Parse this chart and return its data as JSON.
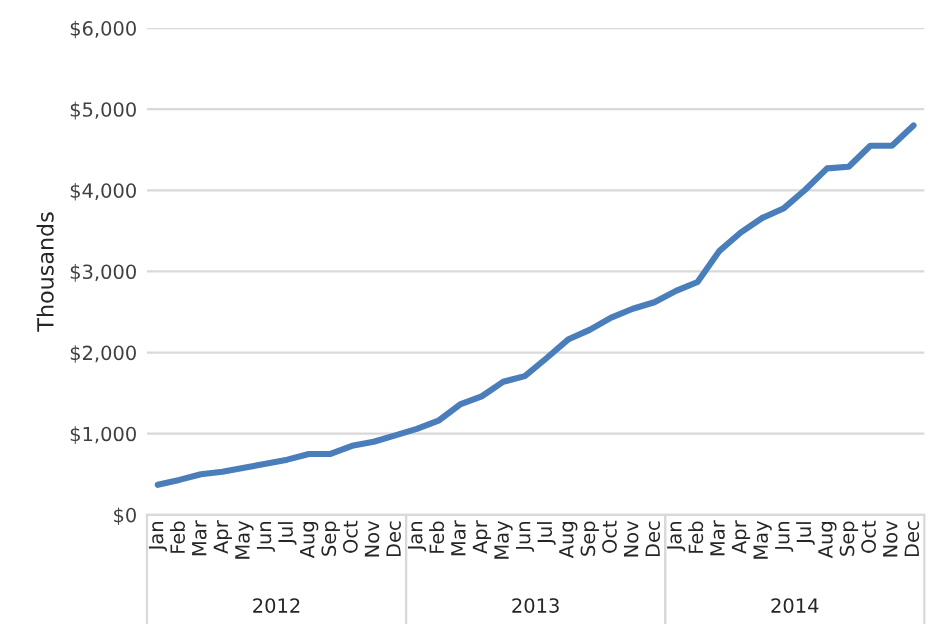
{
  "chart_data": {
    "type": "line",
    "ylabel": "Thousands",
    "categories": [
      "Jan",
      "Feb",
      "Mar",
      "Apr",
      "May",
      "Jun",
      "Jul",
      "Aug",
      "Sep",
      "Oct",
      "Nov",
      "Dec",
      "Jan",
      "Feb",
      "Mar",
      "Apr",
      "May",
      "Jun",
      "Jul",
      "Aug",
      "Sep",
      "Oct",
      "Nov",
      "Dec",
      "Jan",
      "Feb",
      "Mar",
      "Apr",
      "May",
      "Jun",
      "Jul",
      "Aug",
      "Sep",
      "Oct",
      "Nov",
      "Dec"
    ],
    "series": [
      {
        "color": "#4a7ebb",
        "values": [
          370,
          430,
          500,
          530,
          580,
          630,
          680,
          750,
          750,
          850,
          900,
          980,
          1060,
          1160,
          1360,
          1460,
          1640,
          1710,
          1930,
          2160,
          2280,
          2430,
          2540,
          2620,
          2760,
          2870,
          3250,
          3480,
          3660,
          3780,
          4010,
          4270,
          4290,
          4550,
          4550,
          4800
        ]
      }
    ],
    "annotations": [
      "2012",
      "2013",
      "2014"
    ],
    "ylim": [
      0,
      6000
    ],
    "yticks": [
      {
        "value": 0,
        "label": "$0"
      },
      {
        "value": 1000,
        "label": "$1,000"
      },
      {
        "value": 2000,
        "label": "$2,000"
      },
      {
        "value": 3000,
        "label": "$3,000"
      },
      {
        "value": 4000,
        "label": "$4,000"
      },
      {
        "value": 5000,
        "label": "$5,000"
      },
      {
        "value": 6000,
        "label": "$6,000"
      }
    ],
    "grid": "y",
    "legend": false,
    "marker": "none",
    "line_style": "solid"
  }
}
